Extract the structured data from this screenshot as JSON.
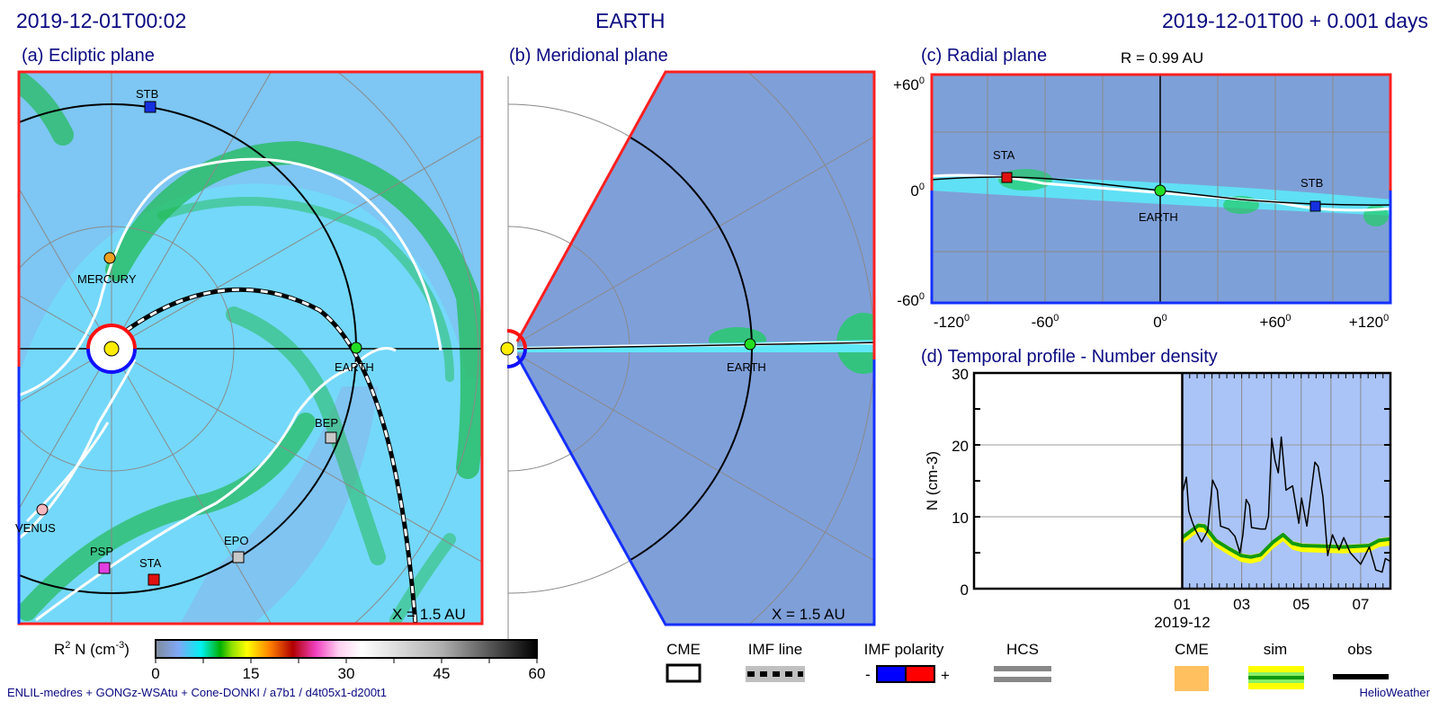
{
  "header": {
    "left_time": "2019-12-01T00:02",
    "center_target": "EARTH",
    "right_time": "2019-12-01T00 +  0.001 days"
  },
  "panels": {
    "a": {
      "title": "(a) Ecliptic plane",
      "scale": "X = 1.5 AU",
      "bodies": [
        {
          "name": "STB",
          "shape": "square",
          "color": "#1530e0"
        },
        {
          "name": "MERCURY",
          "shape": "circle",
          "color": "#f0a020"
        },
        {
          "name": "EARTH",
          "shape": "circle",
          "color": "#22dd22"
        },
        {
          "name": "BEP",
          "shape": "square",
          "color": "#c8c8c8"
        },
        {
          "name": "VENUS",
          "shape": "circle",
          "color": "#f8b8c0"
        },
        {
          "name": "PSP",
          "shape": "square",
          "color": "#e040e0"
        },
        {
          "name": "STA",
          "shape": "square",
          "color": "#e01010"
        },
        {
          "name": "EPO",
          "shape": "square",
          "color": "#c8c8c8"
        }
      ]
    },
    "b": {
      "title": "(b) Meridional plane",
      "scale": "X = 1.5 AU",
      "earth_label": "EARTH"
    },
    "c": {
      "title": "(c) Radial plane",
      "radius": "R = 0.99 AU",
      "y_ticks": [
        "+60",
        "0",
        "-60"
      ],
      "x_ticks": [
        "-120",
        "-60",
        "0",
        "+60",
        "+120"
      ],
      "degree_symbol": "0",
      "labels": {
        "sta": "STA",
        "earth": "EARTH",
        "stb": "STB"
      }
    },
    "d": {
      "title": "(d) Temporal profile - Number density"
    }
  },
  "colorbar": {
    "label_main": "R",
    "label_sup": "2",
    "label_rest": " N (cm",
    "label_unit_sup": "-3",
    "label_close": ")",
    "ticks": [
      "0",
      "15",
      "30",
      "45",
      "60"
    ],
    "range": [
      0,
      60
    ]
  },
  "legend": {
    "cme": "CME",
    "imf_line": "IMF line",
    "imf_polarity": "IMF polarity",
    "polarity_minus": "-",
    "polarity_plus": "+",
    "hcs": "HCS",
    "cme2": "CME",
    "sim": "sim",
    "obs": "obs"
  },
  "footer": {
    "model": "ENLIL-medres + GONGz-WSAtu + Cone-DONKI / a7b1 / d4t05x1-d200t1",
    "brand": "HelioWeather"
  },
  "colors": {
    "polarity_negative": "#0000ff",
    "polarity_positive": "#ff0000",
    "cme_fill": "#ffc060",
    "sim_line": "#119911",
    "sim_band": "#ffff00",
    "obs_line": "#000000",
    "profile_bg": "#aac4f8"
  },
  "chart_data": {
    "type": "line",
    "title": "(d) Temporal profile - Number density",
    "ylabel": "N (cm-3)",
    "ylim": [
      0,
      30
    ],
    "y_ticks": [
      0,
      10,
      20,
      30
    ],
    "xlim": [
      "2019-11-24",
      "2019-12-08"
    ],
    "x_tick_labels": [
      "01",
      "03",
      "05",
      "07"
    ],
    "x_ticks_day_of_dec": [
      1,
      3,
      5,
      7
    ],
    "x_sublabel": "2019-12",
    "grid": true,
    "series": [
      {
        "name": "obs",
        "day_of_dec": [
          1.0,
          1.14,
          1.22,
          1.32,
          1.43,
          1.65,
          1.86,
          2.02,
          2.18,
          2.29,
          2.56,
          2.77,
          2.94,
          3.04,
          3.15,
          3.26,
          3.33,
          3.63,
          3.8,
          3.9,
          4.01,
          4.12,
          4.23,
          4.33,
          4.49,
          4.71,
          4.92,
          5.01,
          5.19,
          5.46,
          5.57,
          5.73,
          5.89,
          6.05,
          6.27,
          6.43,
          6.65,
          7.0,
          7.29,
          7.51,
          7.72,
          7.83,
          7.99
        ],
        "values": [
          13.2,
          15.5,
          10.8,
          9.5,
          8.3,
          6.5,
          8.1,
          15.1,
          13.7,
          8.7,
          8.3,
          7.3,
          5.0,
          7.5,
          12.4,
          11.6,
          8.5,
          8.3,
          8.3,
          10.0,
          20.9,
          17.8,
          16.1,
          21.1,
          13.7,
          14.3,
          9.1,
          12.6,
          8.7,
          17.6,
          17.0,
          12.8,
          4.6,
          7.5,
          5.4,
          7.1,
          5.0,
          3.4,
          5.8,
          2.6,
          2.3,
          4.2,
          3.8
        ]
      },
      {
        "name": "sim",
        "day_of_dec": [
          1.0,
          1.54,
          1.75,
          2.13,
          2.56,
          2.99,
          3.31,
          3.63,
          4.06,
          4.39,
          4.71,
          5.03,
          5.78,
          6.43,
          7.29,
          7.61,
          7.99
        ],
        "values": [
          7.1,
          8.8,
          8.7,
          6.7,
          5.6,
          4.6,
          4.4,
          4.7,
          6.5,
          7.5,
          6.3,
          6.0,
          5.9,
          5.8,
          6.0,
          6.7,
          6.9
        ]
      }
    ]
  }
}
